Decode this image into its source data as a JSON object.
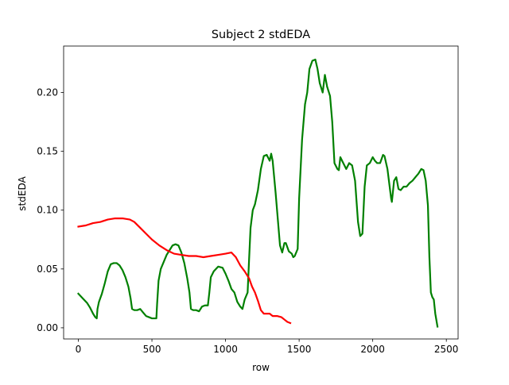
{
  "chart_data": {
    "type": "line",
    "title": "Subject 2 stdEDA",
    "xlabel": "row",
    "ylabel": "stdEDA",
    "xlim": [
      -100,
      2580
    ],
    "ylim": [
      -0.0095,
      0.2395
    ],
    "xticks": [
      0,
      500,
      1000,
      1500,
      2000,
      2500
    ],
    "xtick_labels": [
      "0",
      "500",
      "1000",
      "1500",
      "2000",
      "2500"
    ],
    "yticks": [
      0.0,
      0.05,
      0.1,
      0.15,
      0.2
    ],
    "ytick_labels": [
      "0.00",
      "0.05",
      "0.10",
      "0.15",
      "0.20"
    ],
    "grid": false,
    "legend": null,
    "series": [
      {
        "color": "#008000",
        "points": [
          [
            0,
            0.029
          ],
          [
            30,
            0.025
          ],
          [
            60,
            0.021
          ],
          [
            80,
            0.017
          ],
          [
            100,
            0.012
          ],
          [
            115,
            0.009
          ],
          [
            125,
            0.008
          ],
          [
            130,
            0.016
          ],
          [
            140,
            0.022
          ],
          [
            160,
            0.029
          ],
          [
            180,
            0.038
          ],
          [
            200,
            0.048
          ],
          [
            220,
            0.054
          ],
          [
            240,
            0.055
          ],
          [
            260,
            0.055
          ],
          [
            280,
            0.053
          ],
          [
            300,
            0.049
          ],
          [
            320,
            0.043
          ],
          [
            340,
            0.035
          ],
          [
            355,
            0.025
          ],
          [
            365,
            0.016
          ],
          [
            380,
            0.015
          ],
          [
            400,
            0.015
          ],
          [
            420,
            0.016
          ],
          [
            440,
            0.013
          ],
          [
            460,
            0.01
          ],
          [
            480,
            0.009
          ],
          [
            500,
            0.008
          ],
          [
            520,
            0.008
          ],
          [
            530,
            0.008
          ],
          [
            535,
            0.02
          ],
          [
            545,
            0.04
          ],
          [
            560,
            0.05
          ],
          [
            580,
            0.056
          ],
          [
            600,
            0.062
          ],
          [
            620,
            0.066
          ],
          [
            640,
            0.07
          ],
          [
            660,
            0.071
          ],
          [
            680,
            0.07
          ],
          [
            700,
            0.064
          ],
          [
            720,
            0.055
          ],
          [
            740,
            0.042
          ],
          [
            755,
            0.03
          ],
          [
            765,
            0.016
          ],
          [
            780,
            0.015
          ],
          [
            800,
            0.015
          ],
          [
            820,
            0.014
          ],
          [
            840,
            0.018
          ],
          [
            860,
            0.019
          ],
          [
            880,
            0.019
          ],
          [
            890,
            0.03
          ],
          [
            900,
            0.043
          ],
          [
            920,
            0.048
          ],
          [
            950,
            0.052
          ],
          [
            980,
            0.051
          ],
          [
            1000,
            0.046
          ],
          [
            1020,
            0.04
          ],
          [
            1040,
            0.033
          ],
          [
            1060,
            0.03
          ],
          [
            1080,
            0.022
          ],
          [
            1100,
            0.018
          ],
          [
            1115,
            0.016
          ],
          [
            1130,
            0.024
          ],
          [
            1150,
            0.03
          ],
          [
            1160,
            0.058
          ],
          [
            1170,
            0.085
          ],
          [
            1185,
            0.1
          ],
          [
            1200,
            0.105
          ],
          [
            1220,
            0.117
          ],
          [
            1240,
            0.135
          ],
          [
            1260,
            0.146
          ],
          [
            1280,
            0.147
          ],
          [
            1300,
            0.142
          ],
          [
            1310,
            0.148
          ],
          [
            1320,
            0.142
          ],
          [
            1340,
            0.115
          ],
          [
            1360,
            0.085
          ],
          [
            1370,
            0.07
          ],
          [
            1385,
            0.064
          ],
          [
            1400,
            0.072
          ],
          [
            1410,
            0.072
          ],
          [
            1430,
            0.065
          ],
          [
            1450,
            0.063
          ],
          [
            1460,
            0.06
          ],
          [
            1470,
            0.061
          ],
          [
            1490,
            0.067
          ],
          [
            1500,
            0.11
          ],
          [
            1520,
            0.16
          ],
          [
            1540,
            0.19
          ],
          [
            1555,
            0.2
          ],
          [
            1570,
            0.22
          ],
          [
            1590,
            0.227
          ],
          [
            1610,
            0.228
          ],
          [
            1625,
            0.22
          ],
          [
            1640,
            0.208
          ],
          [
            1660,
            0.2
          ],
          [
            1675,
            0.215
          ],
          [
            1690,
            0.205
          ],
          [
            1710,
            0.197
          ],
          [
            1725,
            0.175
          ],
          [
            1740,
            0.14
          ],
          [
            1760,
            0.135
          ],
          [
            1770,
            0.134
          ],
          [
            1780,
            0.145
          ],
          [
            1800,
            0.14
          ],
          [
            1820,
            0.135
          ],
          [
            1840,
            0.14
          ],
          [
            1860,
            0.138
          ],
          [
            1880,
            0.125
          ],
          [
            1900,
            0.09
          ],
          [
            1915,
            0.078
          ],
          [
            1930,
            0.08
          ],
          [
            1945,
            0.12
          ],
          [
            1960,
            0.138
          ],
          [
            1980,
            0.14
          ],
          [
            2000,
            0.145
          ],
          [
            2015,
            0.142
          ],
          [
            2030,
            0.14
          ],
          [
            2050,
            0.14
          ],
          [
            2070,
            0.147
          ],
          [
            2080,
            0.146
          ],
          [
            2100,
            0.135
          ],
          [
            2115,
            0.12
          ],
          [
            2125,
            0.11
          ],
          [
            2130,
            0.107
          ],
          [
            2145,
            0.125
          ],
          [
            2160,
            0.128
          ],
          [
            2175,
            0.118
          ],
          [
            2190,
            0.117
          ],
          [
            2210,
            0.12
          ],
          [
            2230,
            0.12
          ],
          [
            2250,
            0.123
          ],
          [
            2270,
            0.125
          ],
          [
            2290,
            0.128
          ],
          [
            2310,
            0.131
          ],
          [
            2330,
            0.135
          ],
          [
            2345,
            0.134
          ],
          [
            2360,
            0.125
          ],
          [
            2375,
            0.104
          ],
          [
            2385,
            0.06
          ],
          [
            2395,
            0.03
          ],
          [
            2405,
            0.026
          ],
          [
            2415,
            0.024
          ],
          [
            2425,
            0.012
          ],
          [
            2440,
            0.001
          ]
        ]
      },
      {
        "color": "#ff0000",
        "points": [
          [
            0,
            0.086
          ],
          [
            50,
            0.087
          ],
          [
            100,
            0.089
          ],
          [
            150,
            0.09
          ],
          [
            200,
            0.092
          ],
          [
            250,
            0.093
          ],
          [
            300,
            0.093
          ],
          [
            350,
            0.092
          ],
          [
            380,
            0.09
          ],
          [
            420,
            0.085
          ],
          [
            460,
            0.08
          ],
          [
            500,
            0.075
          ],
          [
            550,
            0.07
          ],
          [
            600,
            0.066
          ],
          [
            650,
            0.063
          ],
          [
            700,
            0.062
          ],
          [
            750,
            0.061
          ],
          [
            800,
            0.061
          ],
          [
            850,
            0.06
          ],
          [
            900,
            0.061
          ],
          [
            950,
            0.062
          ],
          [
            1000,
            0.063
          ],
          [
            1040,
            0.064
          ],
          [
            1070,
            0.06
          ],
          [
            1100,
            0.053
          ],
          [
            1130,
            0.048
          ],
          [
            1160,
            0.042
          ],
          [
            1180,
            0.035
          ],
          [
            1200,
            0.03
          ],
          [
            1220,
            0.023
          ],
          [
            1240,
            0.015
          ],
          [
            1260,
            0.012
          ],
          [
            1280,
            0.012
          ],
          [
            1300,
            0.012
          ],
          [
            1320,
            0.01
          ],
          [
            1350,
            0.01
          ],
          [
            1380,
            0.009
          ],
          [
            1400,
            0.007
          ],
          [
            1420,
            0.005
          ],
          [
            1440,
            0.004
          ]
        ]
      }
    ]
  }
}
